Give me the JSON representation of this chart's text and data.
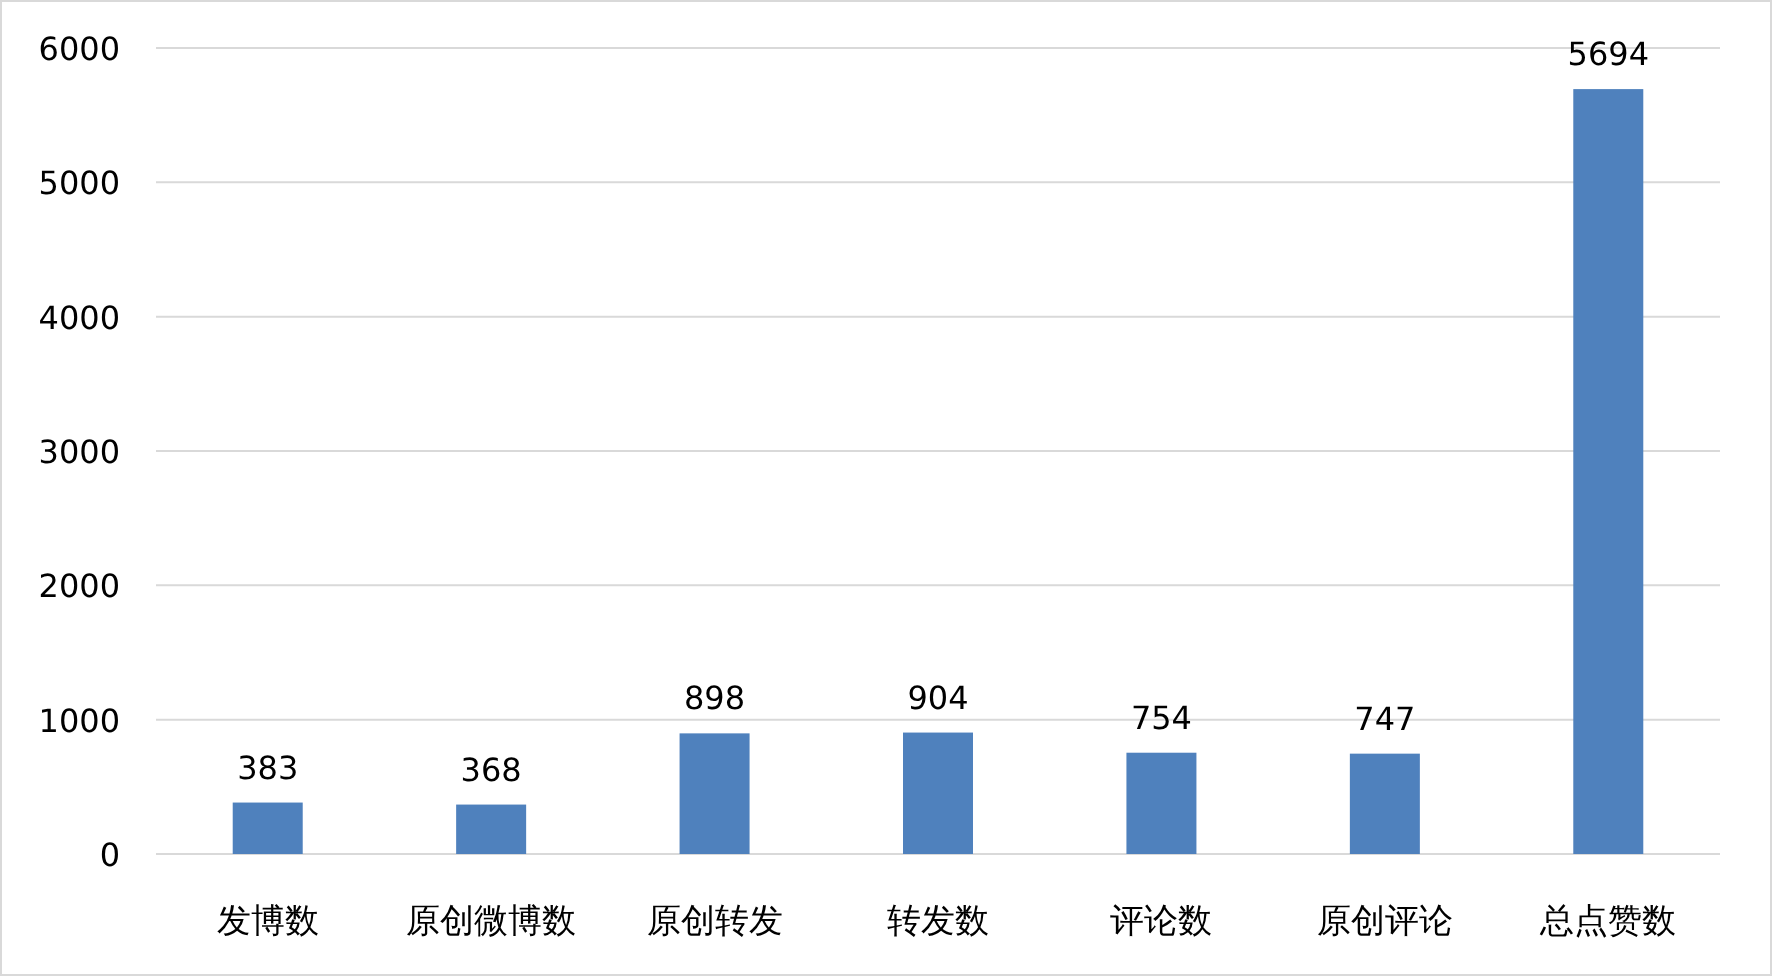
{
  "chart_data": {
    "type": "bar",
    "categories": [
      "发博数",
      "原创微博数",
      "原创转发",
      "转发数",
      "评论数",
      "原创评论",
      "总点赞数"
    ],
    "values": [
      383,
      368,
      898,
      904,
      754,
      747,
      5694
    ],
    "color": "#4f81bd",
    "ylim": [
      0,
      6000
    ],
    "yticks": [
      0,
      1000,
      2000,
      3000,
      4000,
      5000,
      6000
    ],
    "grid": "y",
    "data_labels": true
  }
}
